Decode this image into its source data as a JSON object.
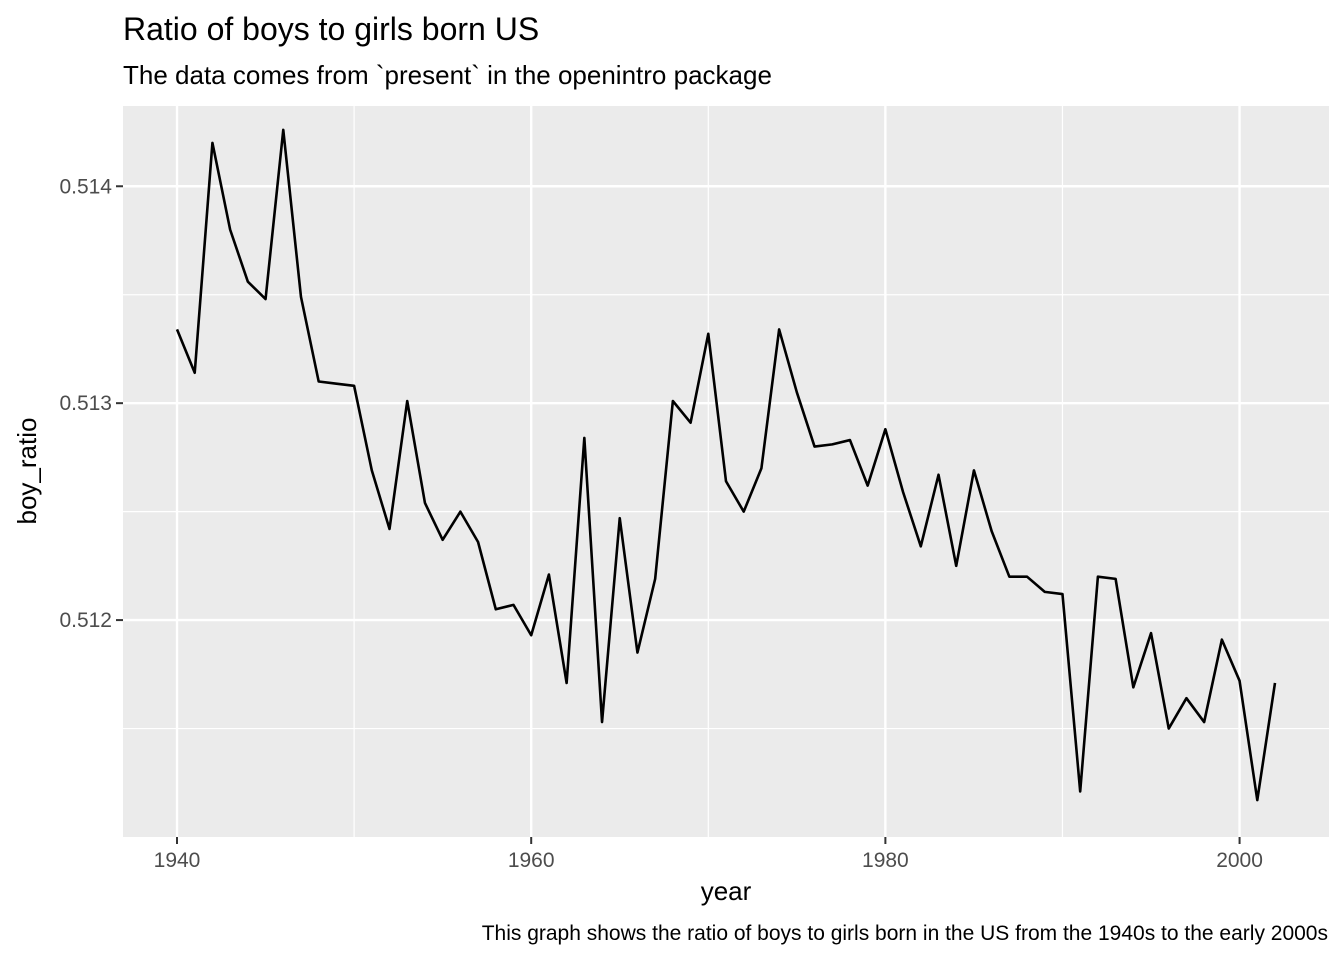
{
  "chart_data": {
    "type": "line",
    "title": "Ratio of boys to girls born US",
    "subtitle": "The data comes from `present` in the openintro package",
    "caption": "This graph shows the ratio of boys to girls born in the US from the 1940s to the early 2000s",
    "xlabel": "year",
    "ylabel": "boy_ratio",
    "xlim": [
      1936.95,
      2005.05
    ],
    "ylim": [
      0.511,
      0.51437
    ],
    "x_ticks": [
      1940,
      1960,
      1980,
      2000
    ],
    "x_tick_labels": [
      "1940",
      "1960",
      "1980",
      "2000"
    ],
    "y_ticks": [
      0.512,
      0.513,
      0.514
    ],
    "y_tick_labels": [
      "0.512",
      "0.513",
      "0.514"
    ],
    "grid": true,
    "background": "#ebebeb",
    "line_color": "#000000",
    "series": [
      {
        "x": [
          1940,
          1941,
          1942,
          1943,
          1944,
          1945,
          1946,
          1947,
          1948,
          1949,
          1950,
          1951,
          1952,
          1953,
          1954,
          1955,
          1956,
          1957,
          1958,
          1959,
          1960,
          1961,
          1962,
          1963,
          1964,
          1965,
          1966,
          1967,
          1968,
          1969,
          1970,
          1971,
          1972,
          1973,
          1974,
          1975,
          1976,
          1977,
          1978,
          1979,
          1980,
          1981,
          1982,
          1983,
          1984,
          1985,
          1986,
          1987,
          1988,
          1989,
          1990,
          1991,
          1992,
          1993,
          1994,
          1995,
          1996,
          1997,
          1998,
          1999,
          2000,
          2001,
          2002
        ],
        "values": [
          0.51334,
          0.51314,
          0.5142,
          0.5138,
          0.51356,
          0.51348,
          0.51426,
          0.51349,
          0.5131,
          0.51309,
          0.51308,
          0.51269,
          0.51242,
          0.51301,
          0.51254,
          0.51237,
          0.5125,
          0.51236,
          0.51205,
          0.51207,
          0.51193,
          0.51221,
          0.51171,
          0.51284,
          0.51153,
          0.51247,
          0.51185,
          0.51219,
          0.51301,
          0.51291,
          0.51332,
          0.51264,
          0.5125,
          0.5127,
          0.51334,
          0.51305,
          0.5128,
          0.51281,
          0.51283,
          0.51262,
          0.51288,
          0.51259,
          0.51234,
          0.51267,
          0.51225,
          0.51269,
          0.51241,
          0.5122,
          0.5122,
          0.51213,
          0.51212,
          0.51121,
          0.5122,
          0.51219,
          0.51169,
          0.51194,
          0.5115,
          0.51164,
          0.51153,
          0.51191,
          0.51172,
          0.51117,
          0.51171
        ]
      }
    ]
  }
}
